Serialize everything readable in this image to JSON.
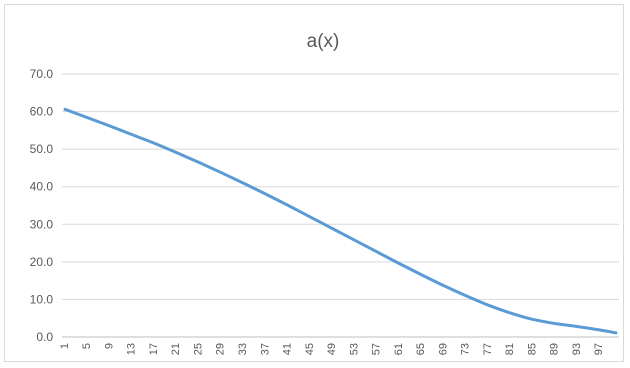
{
  "chart_data": {
    "type": "line",
    "title": "a(x)",
    "xlabel": "",
    "ylabel": "",
    "ylim": [
      0,
      70
    ],
    "yticks": [
      "0.0",
      "10.0",
      "20.0",
      "30.0",
      "40.0",
      "50.0",
      "60.0",
      "70.0"
    ],
    "x_range": [
      1,
      100
    ],
    "xtick_labels": [
      "1",
      "5",
      "9",
      "13",
      "17",
      "21",
      "25",
      "29",
      "33",
      "37",
      "41",
      "45",
      "49",
      "53",
      "57",
      "61",
      "65",
      "69",
      "73",
      "77",
      "81",
      "85",
      "89",
      "93",
      "97"
    ],
    "grid": true,
    "legend": "none",
    "series": [
      {
        "color": "#5b9bd5",
        "x": [
          1,
          5,
          9,
          13,
          17,
          21,
          25,
          29,
          33,
          37,
          41,
          45,
          49,
          53,
          57,
          61,
          65,
          69,
          73,
          77,
          81,
          85,
          89,
          93,
          97,
          100
        ],
        "values": [
          60.6,
          58.4,
          56.2,
          53.9,
          51.6,
          49.1,
          46.5,
          43.8,
          41.0,
          38.1,
          35.1,
          32.0,
          28.9,
          25.8,
          22.7,
          19.6,
          16.6,
          13.7,
          11.0,
          8.5,
          6.4,
          4.7,
          3.6,
          2.8,
          1.9,
          1.1
        ]
      }
    ]
  }
}
